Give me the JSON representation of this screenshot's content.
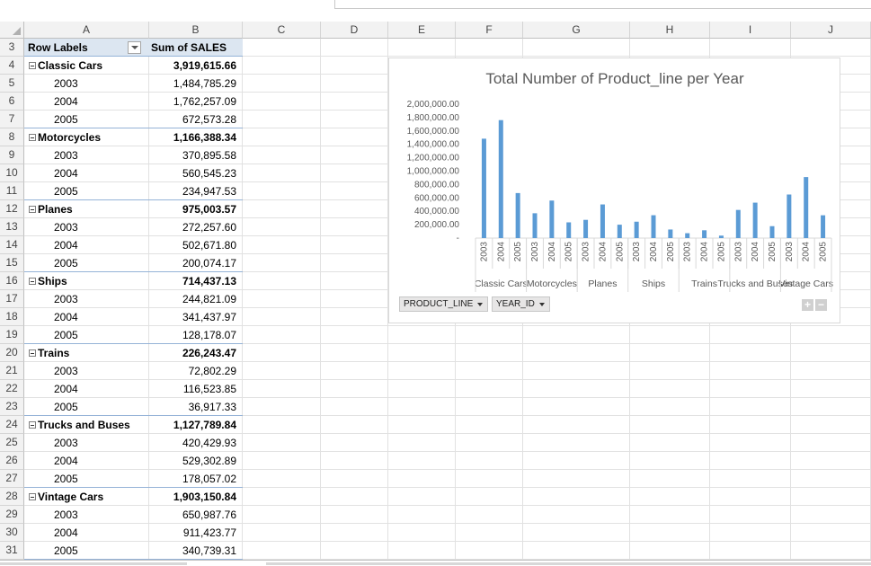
{
  "columns": [
    "A",
    "B",
    "C",
    "D",
    "E",
    "F",
    "G",
    "H",
    "I",
    "J"
  ],
  "first_row_number": 3,
  "row_numbers": [
    3,
    4,
    5,
    6,
    7,
    8,
    9,
    10,
    11,
    12,
    13,
    14,
    15,
    16,
    17,
    18,
    19,
    20,
    21,
    22,
    23,
    24,
    25,
    26,
    27,
    28,
    29,
    30,
    31
  ],
  "pivot": {
    "row_labels_header": "Row Labels",
    "value_header": "Sum of SALES",
    "groups": [
      {
        "label": "Classic Cars",
        "total": "3,919,615.66",
        "years": [
          {
            "year": "2003",
            "value": "1,484,785.29"
          },
          {
            "year": "2004",
            "value": "1,762,257.09"
          },
          {
            "year": "2005",
            "value": "672,573.28"
          }
        ]
      },
      {
        "label": "Motorcycles",
        "total": "1,166,388.34",
        "years": [
          {
            "year": "2003",
            "value": "370,895.58"
          },
          {
            "year": "2004",
            "value": "560,545.23"
          },
          {
            "year": "2005",
            "value": "234,947.53"
          }
        ]
      },
      {
        "label": "Planes",
        "total": "975,003.57",
        "years": [
          {
            "year": "2003",
            "value": "272,257.60"
          },
          {
            "year": "2004",
            "value": "502,671.80"
          },
          {
            "year": "2005",
            "value": "200,074.17"
          }
        ]
      },
      {
        "label": "Ships",
        "total": "714,437.13",
        "years": [
          {
            "year": "2003",
            "value": "244,821.09"
          },
          {
            "year": "2004",
            "value": "341,437.97"
          },
          {
            "year": "2005",
            "value": "128,178.07"
          }
        ]
      },
      {
        "label": "Trains",
        "total": "226,243.47",
        "years": [
          {
            "year": "2003",
            "value": "72,802.29"
          },
          {
            "year": "2004",
            "value": "116,523.85"
          },
          {
            "year": "2005",
            "value": "36,917.33"
          }
        ]
      },
      {
        "label": "Trucks and Buses",
        "total": "1,127,789.84",
        "years": [
          {
            "year": "2003",
            "value": "420,429.93"
          },
          {
            "year": "2004",
            "value": "529,302.89"
          },
          {
            "year": "2005",
            "value": "178,057.02"
          }
        ]
      },
      {
        "label": "Vintage Cars",
        "total": "1,903,150.84",
        "years": [
          {
            "year": "2003",
            "value": "650,987.76"
          },
          {
            "year": "2004",
            "value": "911,423.77"
          },
          {
            "year": "2005",
            "value": "340,739.31"
          }
        ]
      }
    ]
  },
  "chart_data": {
    "type": "bar",
    "title": "Total Number of Product_line per Year",
    "categories": [
      "Classic Cars",
      "Motorcycles",
      "Planes",
      "Ships",
      "Trains",
      "Trucks and Buses",
      "Vintage Cars"
    ],
    "sub_categories": [
      "2003",
      "2004",
      "2005"
    ],
    "values": [
      [
        1484785.29,
        1762257.09,
        672573.28
      ],
      [
        370895.58,
        560545.23,
        234947.53
      ],
      [
        272257.6,
        502671.8,
        200074.17
      ],
      [
        244821.09,
        341437.97,
        128178.07
      ],
      [
        72802.29,
        116523.85,
        36917.33
      ],
      [
        420429.93,
        529302.89,
        178057.02
      ],
      [
        650987.76,
        911423.77,
        340739.31
      ]
    ],
    "y_ticks": [
      "2,000,000.00",
      "1,800,000.00",
      "1,600,000.00",
      "1,400,000.00",
      "1,200,000.00",
      "1,000,000.00",
      "800,000.00",
      "600,000.00",
      "400,000.00",
      "200,000.00",
      "-"
    ],
    "ylim": [
      0,
      2000000
    ],
    "bar_color": "#5b9bd5",
    "grid": false,
    "legend": "none"
  },
  "chart_fields": {
    "product_line": "PRODUCT_LINE",
    "year_id": "YEAR_ID"
  },
  "chart_controls": {
    "plus": "+",
    "minus": "−"
  }
}
